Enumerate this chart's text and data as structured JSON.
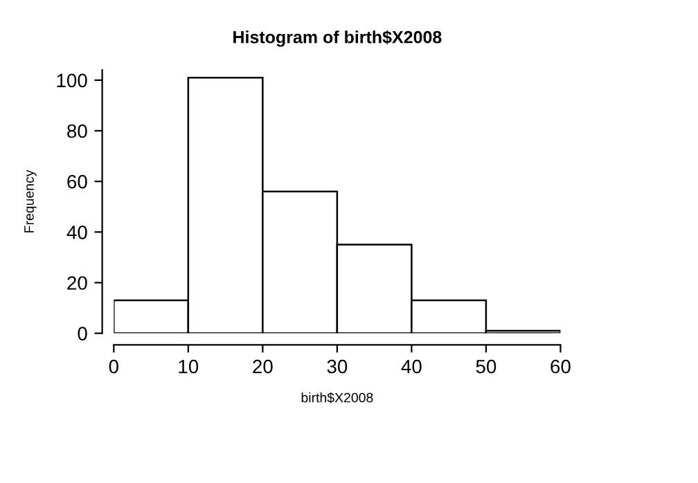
{
  "chart_data": {
    "type": "histogram",
    "title": "Histogram of birth$X2008",
    "xlabel": "birth$X2008",
    "ylabel": "Frequency",
    "bins": [
      0,
      10,
      20,
      30,
      40,
      50,
      60
    ],
    "values": [
      13,
      101,
      56,
      35,
      13,
      1
    ],
    "color": "#ffffff",
    "xlim": [
      0,
      60
    ],
    "ylim": [
      0,
      104
    ],
    "xticks": [
      0,
      10,
      20,
      30,
      40,
      50,
      60
    ],
    "yticks": [
      0,
      20,
      40,
      60,
      80,
      100
    ],
    "grid": false
  }
}
